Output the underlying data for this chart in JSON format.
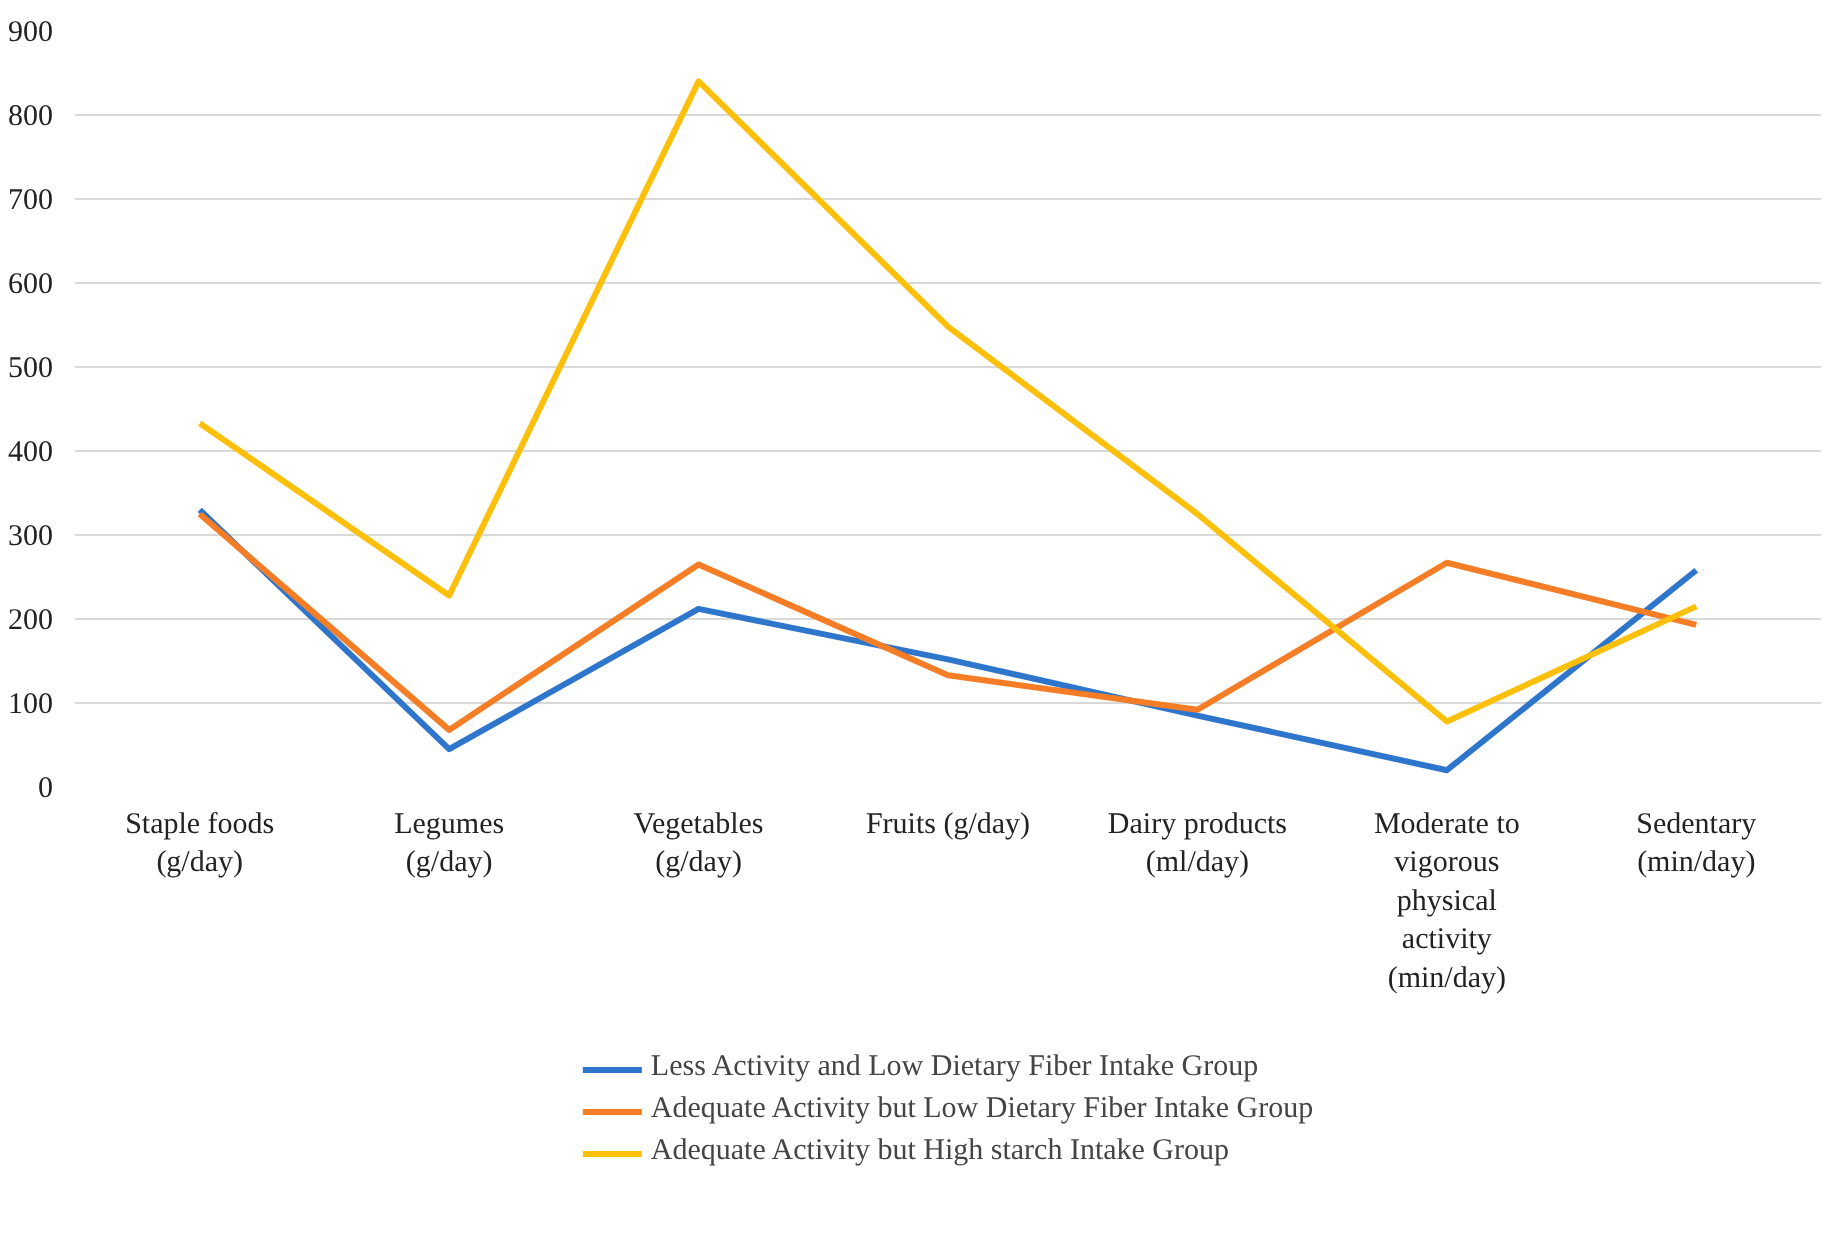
{
  "chart_data": {
    "type": "line",
    "categories": [
      "Staple foods (g/day)",
      "Legumes (g/day)",
      "Vegetables (g/day)",
      "Fruits (g/day)",
      "Dairy products (ml/day)",
      "Moderate to vigorous physical activity (min/day)",
      "Sedentary (min/day)"
    ],
    "series": [
      {
        "name": "Less Activity and Low Dietary Fiber Intake Group",
        "color": "#2e75cc",
        "values": [
          330,
          45,
          212,
          152,
          85,
          20,
          258
        ]
      },
      {
        "name": "Adequate Activity but Low Dietary Fiber Intake Group",
        "color": "#f47d25",
        "values": [
          325,
          68,
          265,
          133,
          92,
          267,
          193
        ]
      },
      {
        "name": "Adequate Activity but High starch Intake Group",
        "color": "#fcbf0a",
        "values": [
          433,
          228,
          840,
          548,
          325,
          78,
          215
        ]
      }
    ],
    "ylim": [
      0,
      900
    ],
    "yticks": [
      0,
      100,
      200,
      300,
      400,
      500,
      600,
      700,
      800,
      900
    ],
    "grid": "y",
    "legend": "bottom",
    "marker": "none"
  }
}
